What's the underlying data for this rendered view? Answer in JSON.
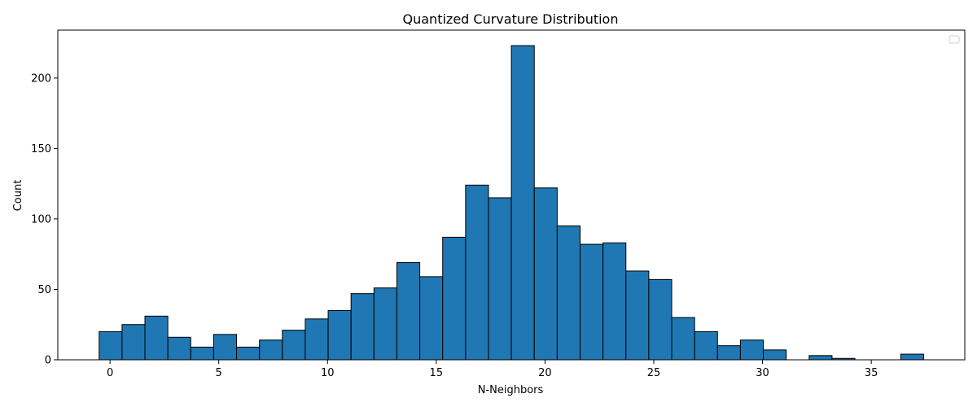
{
  "chart_data": {
    "type": "bar",
    "title": "Quantized Curvature Distribution",
    "xlabel": "N-Neighbors",
    "ylabel": "Count",
    "xlim": [
      -2.4,
      39.3
    ],
    "ylim": [
      0,
      234
    ],
    "xticks": [
      0,
      5,
      10,
      15,
      20,
      25,
      30,
      35
    ],
    "yticks": [
      0,
      50,
      100,
      150,
      200
    ],
    "bin_start": -0.5,
    "bin_width": 1.053,
    "values": [
      20,
      25,
      31,
      16,
      9,
      18,
      9,
      14,
      21,
      29,
      35,
      47,
      51,
      69,
      59,
      87,
      124,
      115,
      223,
      122,
      95,
      82,
      83,
      63,
      57,
      30,
      20,
      10,
      14,
      7,
      0,
      3,
      1,
      0,
      0,
      4
    ],
    "bar_color": "#1f77b4",
    "edge_color": "#000000",
    "legend": "top-right (empty)",
    "grid": false
  }
}
